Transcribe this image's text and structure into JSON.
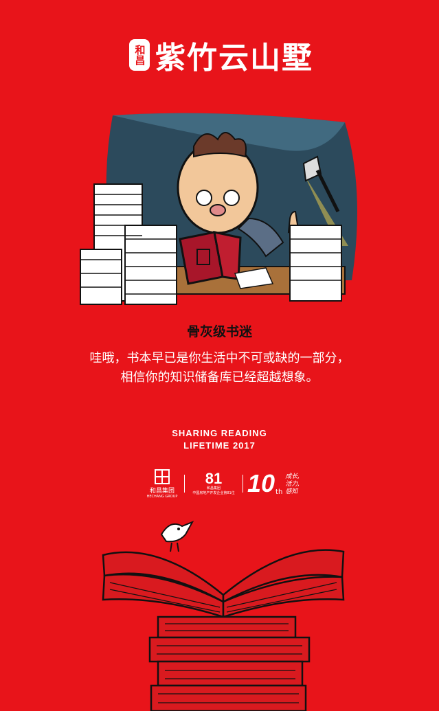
{
  "colors": {
    "background": "#e8141a",
    "ink": "#111111",
    "text": "#ffffff"
  },
  "logo": {
    "seal_text": "和昌",
    "brand_name": "紫竹云山墅"
  },
  "illustration": {
    "icon": "bookworm-reading-illustration"
  },
  "headline": "骨灰级书迷",
  "description": {
    "line1": "哇哦，书本早已是你生活中不可或缺的一部分，",
    "line2": "相信你的知识储备库已经超越想象。"
  },
  "tagline": {
    "line1": "SHARING READING",
    "line2": "LIFETIME 2017"
  },
  "partners": {
    "group": {
      "name": "和昌集团",
      "sub": "HECHANG GROUP"
    },
    "ranking": {
      "number": "81",
      "line1": "和昌集团",
      "line2": "中国房地产开发企业第81位"
    },
    "anniversary": {
      "number": "10",
      "suffix": "th",
      "line1": "成长,",
      "line2": "活力,",
      "line3": "感知"
    }
  },
  "bottom": {
    "icon": "bird-on-books-icon"
  }
}
